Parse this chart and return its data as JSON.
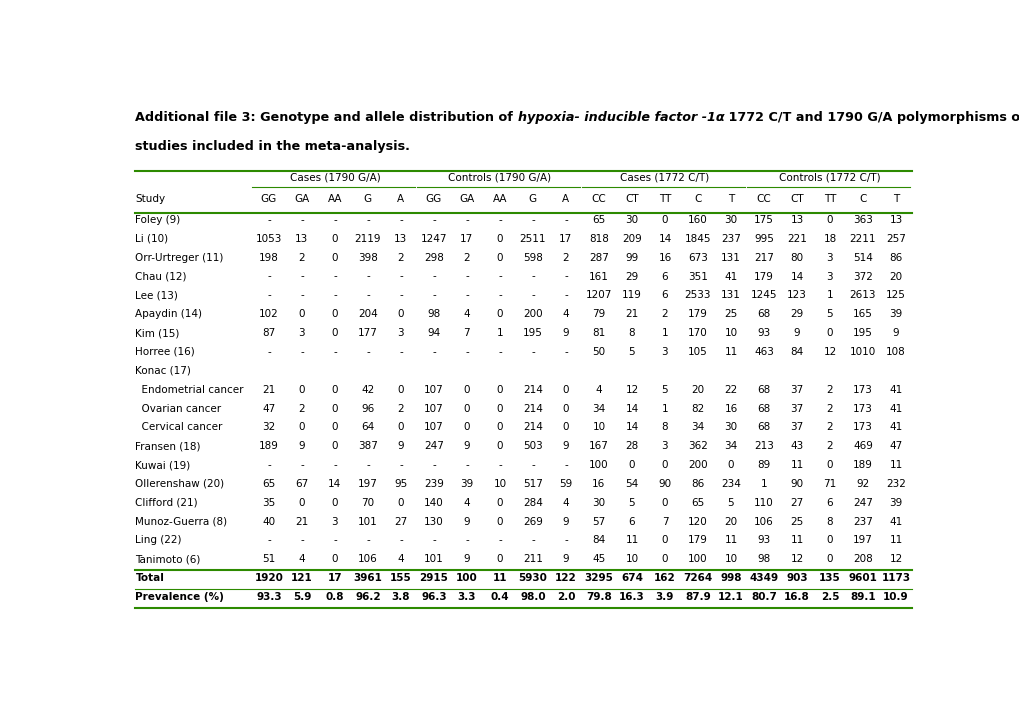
{
  "sub_headers": [
    "GG",
    "GA",
    "AA",
    "G",
    "A",
    "GG",
    "GA",
    "AA",
    "G",
    "A",
    "CC",
    "CT",
    "TT",
    "C",
    "T",
    "CC",
    "CT",
    "TT",
    "C",
    "T"
  ],
  "group_headers": [
    "Cases (1790 G/A)",
    "Controls (1790 G/A)",
    "Cases (1772 C/T)",
    "Controls (1772 C/T)"
  ],
  "rows": [
    [
      "Foley (9)",
      "-",
      "-",
      "-",
      "-",
      "-",
      "-",
      "-",
      "-",
      "-",
      "-",
      "65",
      "30",
      "0",
      "160",
      "30",
      "175",
      "13",
      "0",
      "363",
      "13"
    ],
    [
      "Li (10)",
      "1053",
      "13",
      "0",
      "2119",
      "13",
      "1247",
      "17",
      "0",
      "2511",
      "17",
      "818",
      "209",
      "14",
      "1845",
      "237",
      "995",
      "221",
      "18",
      "2211",
      "257"
    ],
    [
      "Orr-Urtreger (11)",
      "198",
      "2",
      "0",
      "398",
      "2",
      "298",
      "2",
      "0",
      "598",
      "2",
      "287",
      "99",
      "16",
      "673",
      "131",
      "217",
      "80",
      "3",
      "514",
      "86"
    ],
    [
      "Chau (12)",
      "-",
      "-",
      "-",
      "-",
      "-",
      "-",
      "-",
      "-",
      "-",
      "-",
      "161",
      "29",
      "6",
      "351",
      "41",
      "179",
      "14",
      "3",
      "372",
      "20"
    ],
    [
      "Lee (13)",
      "-",
      "-",
      "-",
      "-",
      "-",
      "-",
      "-",
      "-",
      "-",
      "-",
      "1207",
      "119",
      "6",
      "2533",
      "131",
      "1245",
      "123",
      "1",
      "2613",
      "125"
    ],
    [
      "Apaydin (14)",
      "102",
      "0",
      "0",
      "204",
      "0",
      "98",
      "4",
      "0",
      "200",
      "4",
      "79",
      "21",
      "2",
      "179",
      "25",
      "68",
      "29",
      "5",
      "165",
      "39"
    ],
    [
      "Kim (15)",
      "87",
      "3",
      "0",
      "177",
      "3",
      "94",
      "7",
      "1",
      "195",
      "9",
      "81",
      "8",
      "1",
      "170",
      "10",
      "93",
      "9",
      "0",
      "195",
      "9"
    ],
    [
      "Horree (16)",
      "-",
      "-",
      "-",
      "-",
      "-",
      "-",
      "-",
      "-",
      "-",
      "-",
      "50",
      "5",
      "3",
      "105",
      "11",
      "463",
      "84",
      "12",
      "1010",
      "108"
    ],
    [
      "Konac (17)",
      "",
      "",
      "",
      "",
      "",
      "",
      "",
      "",
      "",
      "",
      "",
      "",
      "",
      "",
      "",
      "",
      "",
      "",
      "",
      ""
    ],
    [
      "  Endometrial cancer",
      "21",
      "0",
      "0",
      "42",
      "0",
      "107",
      "0",
      "0",
      "214",
      "0",
      "4",
      "12",
      "5",
      "20",
      "22",
      "68",
      "37",
      "2",
      "173",
      "41"
    ],
    [
      "  Ovarian cancer",
      "47",
      "2",
      "0",
      "96",
      "2",
      "107",
      "0",
      "0",
      "214",
      "0",
      "34",
      "14",
      "1",
      "82",
      "16",
      "68",
      "37",
      "2",
      "173",
      "41"
    ],
    [
      "  Cervical cancer",
      "32",
      "0",
      "0",
      "64",
      "0",
      "107",
      "0",
      "0",
      "214",
      "0",
      "10",
      "14",
      "8",
      "34",
      "30",
      "68",
      "37",
      "2",
      "173",
      "41"
    ],
    [
      "Fransen (18)",
      "189",
      "9",
      "0",
      "387",
      "9",
      "247",
      "9",
      "0",
      "503",
      "9",
      "167",
      "28",
      "3",
      "362",
      "34",
      "213",
      "43",
      "2",
      "469",
      "47"
    ],
    [
      "Kuwai (19)",
      "-",
      "-",
      "-",
      "-",
      "-",
      "-",
      "-",
      "-",
      "-",
      "-",
      "100",
      "0",
      "0",
      "200",
      "0",
      "89",
      "11",
      "0",
      "189",
      "11"
    ],
    [
      "Ollerenshaw (20)",
      "65",
      "67",
      "14",
      "197",
      "95",
      "239",
      "39",
      "10",
      "517",
      "59",
      "16",
      "54",
      "90",
      "86",
      "234",
      "1",
      "90",
      "71",
      "92",
      "232"
    ],
    [
      "Clifford (21)",
      "35",
      "0",
      "0",
      "70",
      "0",
      "140",
      "4",
      "0",
      "284",
      "4",
      "30",
      "5",
      "0",
      "65",
      "5",
      "110",
      "27",
      "6",
      "247",
      "39"
    ],
    [
      "Munoz-Guerra (8)",
      "40",
      "21",
      "3",
      "101",
      "27",
      "130",
      "9",
      "0",
      "269",
      "9",
      "57",
      "6",
      "7",
      "120",
      "20",
      "106",
      "25",
      "8",
      "237",
      "41"
    ],
    [
      "Ling (22)",
      "-",
      "-",
      "-",
      "-",
      "-",
      "-",
      "-",
      "-",
      "-",
      "-",
      "84",
      "11",
      "0",
      "179",
      "11",
      "93",
      "11",
      "0",
      "197",
      "11"
    ],
    [
      "Tanimoto (6)",
      "51",
      "4",
      "0",
      "106",
      "4",
      "101",
      "9",
      "0",
      "211",
      "9",
      "45",
      "10",
      "0",
      "100",
      "10",
      "98",
      "12",
      "0",
      "208",
      "12"
    ],
    [
      "Total",
      "1920",
      "121",
      "17",
      "3961",
      "155",
      "2915",
      "100",
      "11",
      "5930",
      "122",
      "3295",
      "674",
      "162",
      "7264",
      "998",
      "4349",
      "903",
      "135",
      "9601",
      "1173"
    ],
    [
      "Prevalence (%)",
      "93.3",
      "5.9",
      "0.8",
      "96.2",
      "3.8",
      "96.3",
      "3.3",
      "0.4",
      "98.0",
      "2.0",
      "79.8",
      "16.3",
      "3.9",
      "87.9",
      "12.1",
      "80.7",
      "16.8",
      "2.5",
      "89.1",
      "10.9"
    ]
  ],
  "bold_rows": [
    19,
    20
  ],
  "green_line_color": "#2d8a00",
  "bg_color": "#ffffff",
  "text_color": "#000000",
  "fontsize": 7.5,
  "title_fontsize": 9.2
}
